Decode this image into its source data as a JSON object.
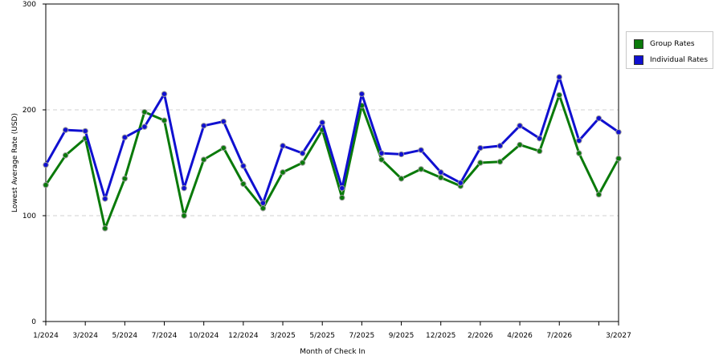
{
  "chart_data": {
    "type": "line",
    "xlabel": "Month of Check In",
    "ylabel": "Lowest Average Rate (USD)",
    "ylim": [
      0,
      300
    ],
    "yticks": [
      0,
      100,
      200,
      300
    ],
    "grid": "horizontal dashed",
    "legend_position": "right",
    "x_tick_labels": [
      {
        "index": 0,
        "label": "1/2024"
      },
      {
        "index": 2,
        "label": "3/2024"
      },
      {
        "index": 4,
        "label": "5/2024"
      },
      {
        "index": 6,
        "label": "7/2024"
      },
      {
        "index": 8,
        "label": "10/2024"
      },
      {
        "index": 10,
        "label": "12/2024"
      },
      {
        "index": 12,
        "label": "3/2025"
      },
      {
        "index": 14,
        "label": "5/2025"
      },
      {
        "index": 16,
        "label": "7/2025"
      },
      {
        "index": 18,
        "label": "9/2025"
      },
      {
        "index": 20,
        "label": "12/2025"
      },
      {
        "index": 22,
        "label": "2/2026"
      },
      {
        "index": 24,
        "label": "4/2026"
      },
      {
        "index": 26,
        "label": "7/2026"
      },
      {
        "index": 28,
        "label": ""
      },
      {
        "index": 29,
        "label": "3/2027"
      }
    ],
    "series": [
      {
        "name": "Group Rates",
        "color": "#0a7a0a",
        "values": [
          129,
          157,
          173,
          88,
          135,
          198,
          190,
          100,
          153,
          164,
          130,
          107,
          141,
          150,
          181,
          117,
          204,
          153,
          135,
          144,
          136,
          128,
          150,
          151,
          167,
          161,
          214,
          159,
          120,
          154
        ]
      },
      {
        "name": "Individual Rates",
        "color": "#1010d0",
        "values": [
          148,
          181,
          180,
          116,
          174,
          184,
          215,
          126,
          185,
          189,
          147,
          112,
          166,
          159,
          188,
          126,
          215,
          159,
          158,
          162,
          141,
          131,
          164,
          166,
          185,
          173,
          231,
          171,
          192,
          179
        ]
      }
    ]
  }
}
